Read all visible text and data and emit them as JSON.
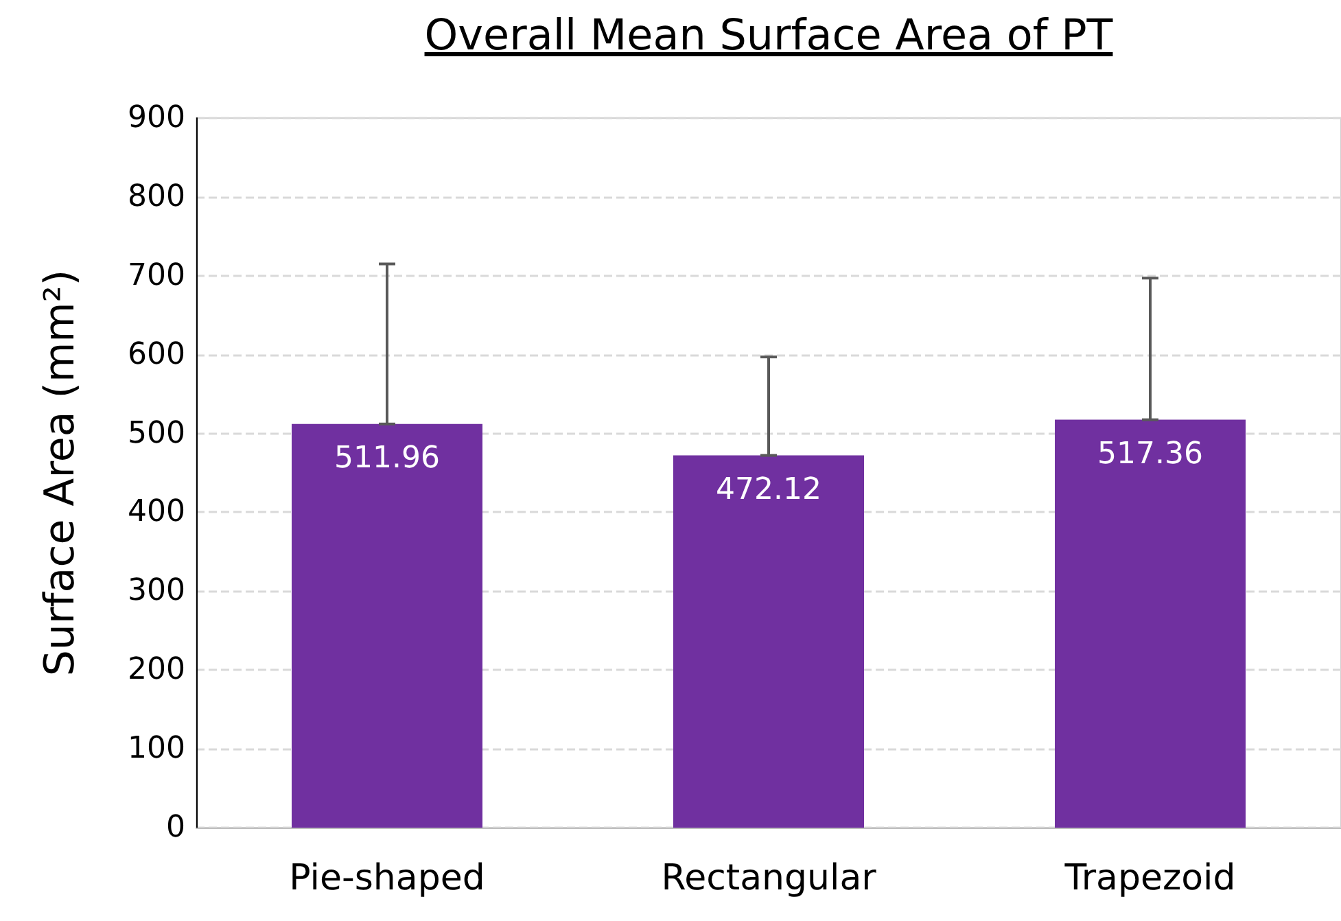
{
  "chart_data": {
    "type": "bar",
    "title": "Overall Mean Surface Area of PT",
    "ylabel": "Surface Area (mm²)",
    "categories": [
      "Pie-shaped",
      "Rectangular",
      "Trapezoid"
    ],
    "values": [
      511.96,
      472.12,
      517.36
    ],
    "color": "#7030a0",
    "errors": [
      [
        511.96,
        715
      ],
      [
        472.12,
        597
      ],
      [
        517.36,
        697
      ]
    ],
    "ylim": [
      0,
      900
    ],
    "yticks": [
      0,
      100,
      200,
      300,
      400,
      500,
      600,
      700,
      800,
      900
    ],
    "grid": "y",
    "data_labels": true
  }
}
